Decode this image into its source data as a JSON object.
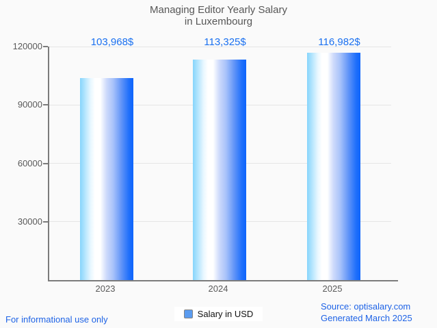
{
  "title": {
    "line1": "Managing Editor Yearly Salary",
    "line2": "in Luxembourg"
  },
  "legend": {
    "label": "Salary in USD",
    "swatch_color": "#5b9cf0"
  },
  "footer": {
    "left_note": "For informational use only",
    "source": "Source: optisalary.com",
    "generated": "Generated March 2025"
  },
  "colors": {
    "background": "#fafafa",
    "title_text": "#565656",
    "axis": "#7b7b7b",
    "gridline": "#e5e5e5",
    "tick_text": "#595959",
    "value_label_blue": "#1a70f0",
    "footer_blue": "#1e63e6",
    "bar_gradient": [
      "#86d5fc",
      "#ffffff",
      "#0d64fc"
    ]
  },
  "chart_data": {
    "type": "bar",
    "title": "Managing Editor Yearly Salary in Luxembourg",
    "categories": [
      "2023",
      "2024",
      "2025"
    ],
    "values": [
      103968,
      113325,
      116982
    ],
    "value_labels": [
      "103,968$",
      "113,325$",
      "116,982$"
    ],
    "series_name": "Salary in USD",
    "xlabel": "",
    "ylabel": "",
    "ylim": [
      0,
      120000
    ],
    "yticks": [
      30000,
      60000,
      90000,
      120000
    ],
    "grid": true,
    "legend_position": "bottom"
  }
}
